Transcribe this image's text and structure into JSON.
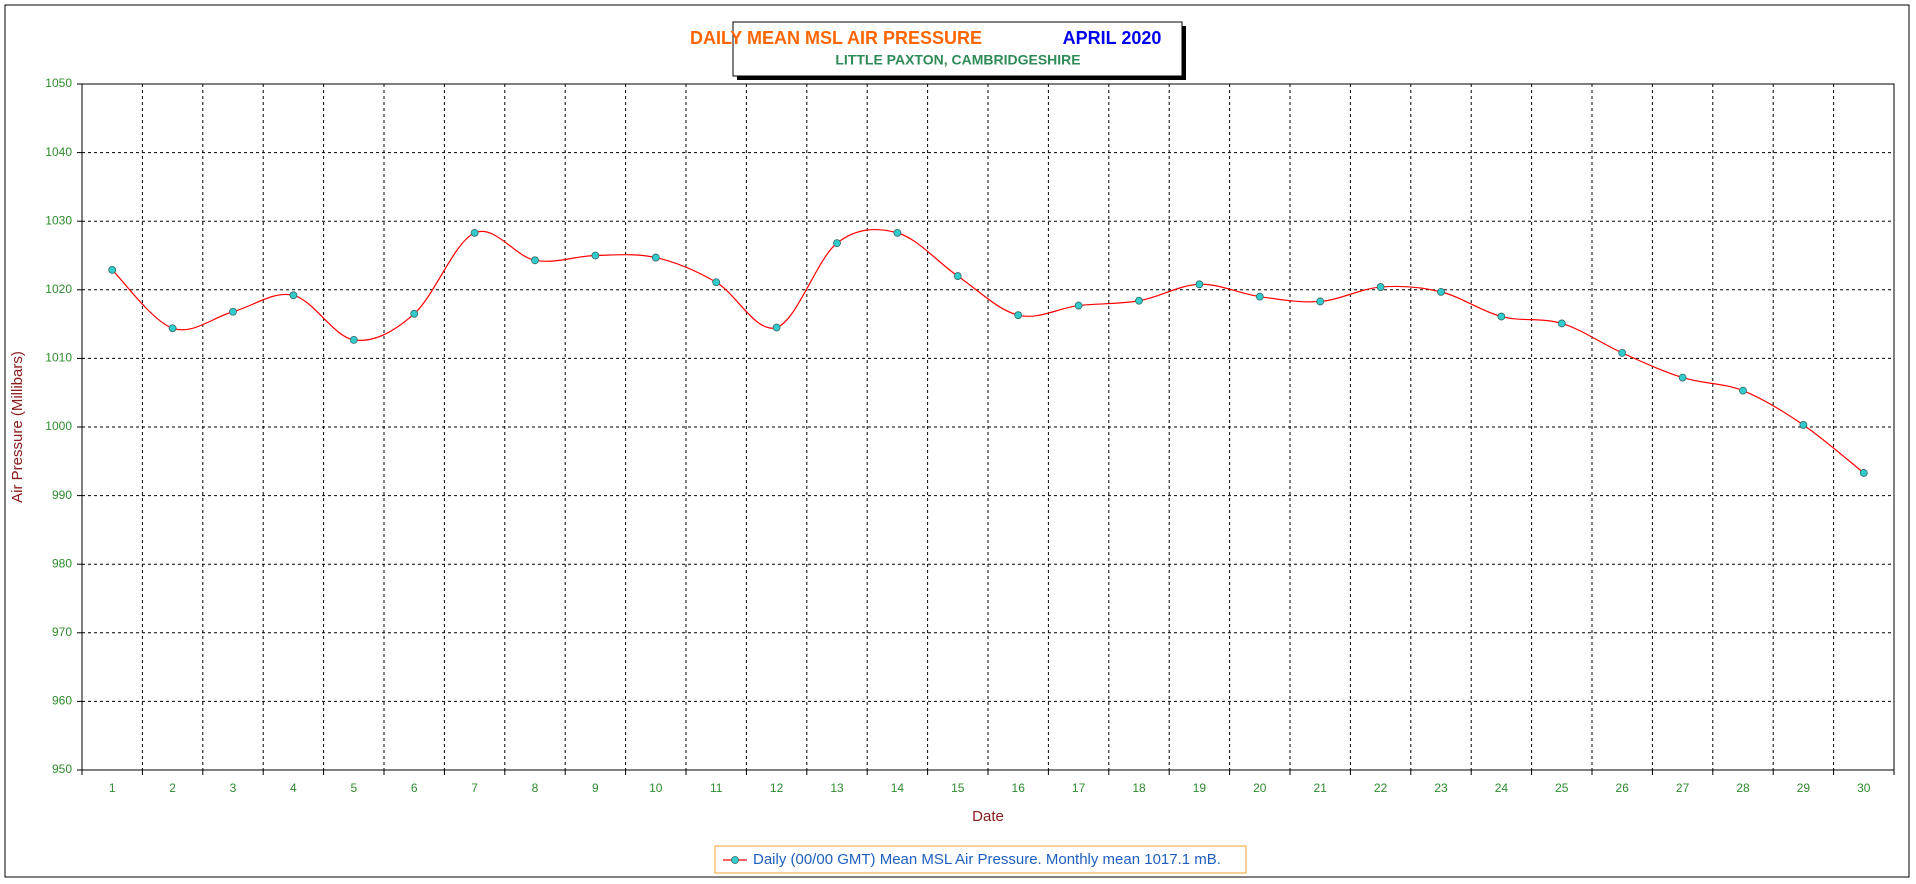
{
  "chart_data": {
    "type": "line",
    "title": "DAILY MEAN MSL AIR PRESSURE",
    "period": "APRIL 2020",
    "subtitle": "LITTLE PAXTON, CAMBRIDGESHIRE",
    "y_label": "Air Pressure (Millibars)",
    "x_label": "Date",
    "categories": [
      "1",
      "2",
      "3",
      "4",
      "5",
      "6",
      "7",
      "8",
      "9",
      "10",
      "11",
      "12",
      "13",
      "14",
      "15",
      "16",
      "17",
      "18",
      "19",
      "20",
      "21",
      "22",
      "23",
      "24",
      "25",
      "26",
      "27",
      "28",
      "29",
      "30"
    ],
    "series": [
      {
        "name": "Daily (00/00 GMT) Mean MSL Air Pressure. Monthly mean 1017.1 mB.",
        "color": "#ff0000",
        "marker_color": "#33cccc",
        "values": [
          1022.9,
          1014.4,
          1016.8,
          1019.2,
          1012.7,
          1016.5,
          1028.3,
          1024.3,
          1025.0,
          1024.7,
          1021.1,
          1014.5,
          1026.8,
          1028.3,
          1022.0,
          1016.3,
          1017.7,
          1018.4,
          1020.8,
          1019.0,
          1018.3,
          1020.4,
          1019.7,
          1016.1,
          1015.1,
          1010.8,
          1007.2,
          1005.3,
          1000.3,
          993.3
        ]
      }
    ],
    "ylim": [
      950,
      1050
    ],
    "yticks": [
      950,
      960,
      970,
      980,
      990,
      1000,
      1010,
      1020,
      1030,
      1040,
      1050
    ],
    "grid": true,
    "smooth": true
  }
}
